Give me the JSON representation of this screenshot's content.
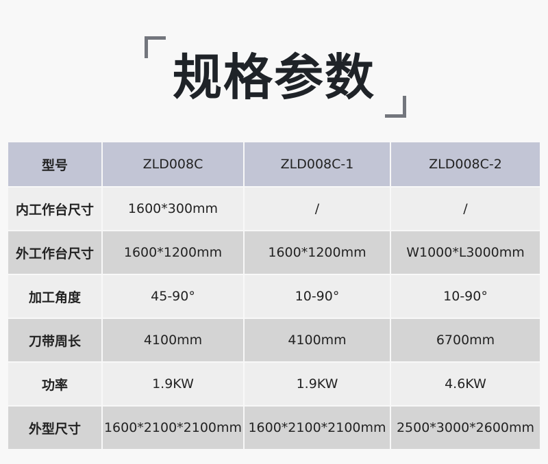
{
  "title": "规格参数",
  "table": {
    "header": [
      "型号",
      "ZLD008C",
      "ZLD008C-1",
      "ZLD008C-2"
    ],
    "rows": [
      [
        "内工作台尺寸",
        "1600*300mm",
        "/",
        "/"
      ],
      [
        "外工作台尺寸",
        "1600*1200mm",
        "1600*1200mm",
        "W1000*L3000mm"
      ],
      [
        "加工角度",
        "45-90°",
        "10-90°",
        "10-90°"
      ],
      [
        "刀带周长",
        "4100mm",
        "4100mm",
        "6700mm"
      ],
      [
        "功率",
        "1.9KW",
        "1.9KW",
        "4.6KW"
      ],
      [
        "外型尺寸",
        "1600*2100*2100mm",
        "1600*2100*2100mm",
        "2500*3000*2600mm"
      ]
    ]
  },
  "colors": {
    "header": "#c2c5d5",
    "row_light": "#eeeeee",
    "row_dark": "#d4d4d4",
    "bracket": "#73767d"
  }
}
